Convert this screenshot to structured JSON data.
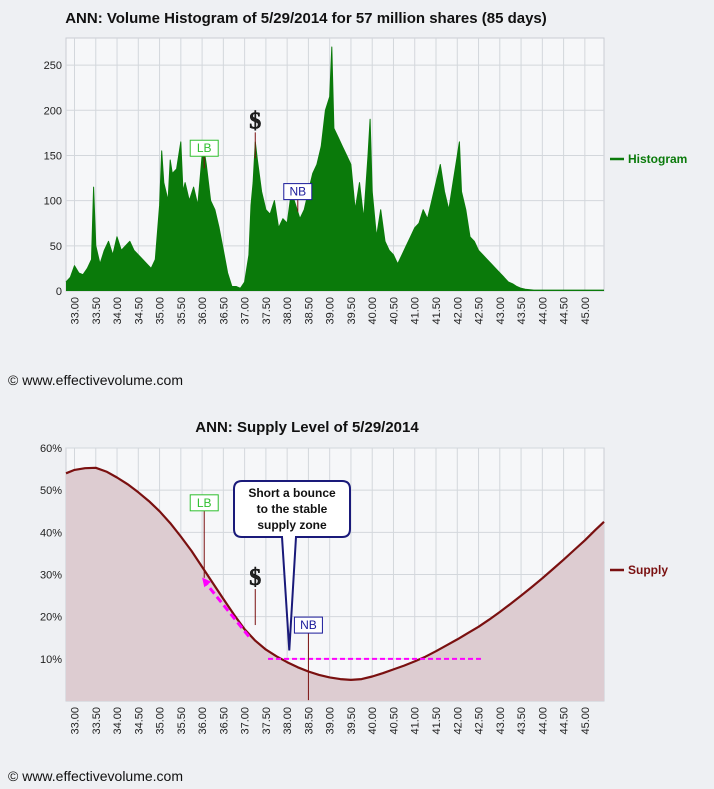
{
  "copyright": "© www.effectivevolume.com",
  "chart_data": [
    {
      "type": "area",
      "title": "ANN: Volume Histogram of 5/29/2014 for 57 million shares (85 days)",
      "legend": "Histogram",
      "legend_position": "right",
      "color": "#0a7a0a",
      "grid": true,
      "x_ticks": [
        "33.00",
        "33.50",
        "34.00",
        "34.50",
        "35.00",
        "35.50",
        "36.00",
        "36.50",
        "37.00",
        "37.50",
        "38.00",
        "38.50",
        "39.00",
        "39.50",
        "40.00",
        "40.50",
        "41.00",
        "41.50",
        "42.00",
        "42.50",
        "43.00",
        "43.50",
        "44.00",
        "44.50",
        "45.00"
      ],
      "y_ticks": [
        "0",
        "50",
        "100",
        "150",
        "200",
        "250"
      ],
      "xlim": [
        32.8,
        45.45
      ],
      "ylim": [
        0,
        280
      ],
      "markers": [
        {
          "label": "LB",
          "x": 36.05,
          "y": 158
        },
        {
          "label": "$",
          "x": 37.25,
          "y": 180
        },
        {
          "label": "NB",
          "x": 38.25,
          "y": 110
        }
      ],
      "x": [
        32.8,
        32.9,
        33.0,
        33.1,
        33.2,
        33.3,
        33.4,
        33.45,
        33.5,
        33.6,
        33.7,
        33.8,
        33.9,
        34.0,
        34.1,
        34.2,
        34.3,
        34.4,
        34.5,
        34.6,
        34.7,
        34.8,
        34.9,
        35.0,
        35.05,
        35.1,
        35.2,
        35.25,
        35.3,
        35.4,
        35.5,
        35.55,
        35.6,
        35.7,
        35.8,
        35.9,
        36.0,
        36.05,
        36.1,
        36.2,
        36.3,
        36.4,
        36.5,
        36.6,
        36.7,
        36.8,
        36.9,
        37.0,
        37.1,
        37.15,
        37.2,
        37.25,
        37.3,
        37.4,
        37.5,
        37.6,
        37.7,
        37.8,
        37.9,
        38.0,
        38.1,
        38.2,
        38.3,
        38.4,
        38.5,
        38.6,
        38.7,
        38.8,
        38.9,
        39.0,
        39.05,
        39.1,
        39.2,
        39.3,
        39.4,
        39.5,
        39.6,
        39.7,
        39.8,
        39.9,
        39.95,
        40.0,
        40.1,
        40.2,
        40.3,
        40.4,
        40.5,
        40.6,
        40.7,
        40.8,
        40.9,
        41.0,
        41.1,
        41.2,
        41.3,
        41.4,
        41.5,
        41.6,
        41.7,
        41.8,
        41.9,
        42.0,
        42.05,
        42.1,
        42.2,
        42.3,
        42.4,
        42.5,
        42.6,
        42.7,
        42.8,
        42.9,
        43.0,
        43.1,
        43.2,
        43.3,
        43.4,
        43.5,
        43.6,
        43.8,
        44.0,
        44.5,
        45.0,
        45.45
      ],
      "values": [
        10,
        15,
        28,
        20,
        18,
        25,
        35,
        115,
        50,
        30,
        45,
        55,
        40,
        60,
        45,
        50,
        55,
        45,
        40,
        35,
        30,
        25,
        35,
        95,
        155,
        120,
        100,
        145,
        130,
        135,
        165,
        110,
        120,
        100,
        115,
        95,
        150,
        155,
        140,
        100,
        90,
        70,
        45,
        20,
        5,
        5,
        3,
        10,
        40,
        95,
        120,
        165,
        145,
        110,
        90,
        85,
        100,
        70,
        80,
        75,
        110,
        95,
        80,
        90,
        110,
        130,
        140,
        160,
        200,
        215,
        270,
        180,
        170,
        160,
        150,
        140,
        90,
        120,
        80,
        150,
        190,
        110,
        60,
        90,
        55,
        45,
        40,
        30,
        40,
        50,
        60,
        70,
        75,
        90,
        80,
        100,
        120,
        140,
        110,
        90,
        120,
        150,
        165,
        110,
        90,
        60,
        55,
        45,
        40,
        35,
        30,
        25,
        20,
        15,
        10,
        8,
        5,
        3,
        2,
        1,
        1,
        1,
        1,
        1
      ]
    },
    {
      "type": "area",
      "title": "ANN: Supply Level of 5/29/2014",
      "legend": "Supply",
      "legend_position": "right",
      "color": "#7a1010",
      "fill": "#ddccd1",
      "grid": true,
      "x_ticks": [
        "33.00",
        "33.50",
        "34.00",
        "34.50",
        "35.00",
        "35.50",
        "36.00",
        "36.50",
        "37.00",
        "37.50",
        "38.00",
        "38.50",
        "39.00",
        "39.50",
        "40.00",
        "40.50",
        "41.00",
        "41.50",
        "42.00",
        "42.50",
        "43.00",
        "43.50",
        "44.00",
        "44.50",
        "45.00"
      ],
      "y_ticks": [
        "10%",
        "20%",
        "30%",
        "40%",
        "50%",
        "60%"
      ],
      "xlim": [
        32.8,
        45.45
      ],
      "ylim": [
        0,
        60
      ],
      "x": [
        32.8,
        33.0,
        33.25,
        33.5,
        33.75,
        34.0,
        34.25,
        34.5,
        34.75,
        35.0,
        35.25,
        35.5,
        35.75,
        36.0,
        36.25,
        36.5,
        36.75,
        37.0,
        37.25,
        37.5,
        37.75,
        38.0,
        38.25,
        38.5,
        38.75,
        39.0,
        39.25,
        39.5,
        39.75,
        40.0,
        40.25,
        40.5,
        40.75,
        41.0,
        41.25,
        41.5,
        41.75,
        42.0,
        42.25,
        42.5,
        42.75,
        43.0,
        43.25,
        43.5,
        43.75,
        44.0,
        44.25,
        44.5,
        44.75,
        45.0,
        45.25,
        45.45
      ],
      "values": [
        54,
        54.8,
        55.2,
        55.3,
        54.4,
        53,
        51.4,
        49.5,
        47.4,
        45,
        42.2,
        39,
        35.6,
        31.8,
        28,
        24.2,
        20.5,
        17,
        14.3,
        12.2,
        10.6,
        9.2,
        8,
        7,
        6.2,
        5.6,
        5.2,
        5,
        5.2,
        5.8,
        6.6,
        7.5,
        8.4,
        9.4,
        10.5,
        11.8,
        13.2,
        14.6,
        16.1,
        17.6,
        19.3,
        21.1,
        23,
        25,
        27,
        29.1,
        31.3,
        33.5,
        35.8,
        38.1,
        40.6,
        42.5
      ],
      "threshold": {
        "y": 10,
        "x_start": 37.55,
        "x_end": 42.6
      },
      "arrow": {
        "from": [
          37.1,
          15.3
        ],
        "to": [
          36.0,
          29.3
        ]
      },
      "markers": [
        {
          "label": "LB",
          "x": 36.05,
          "y": 47
        },
        {
          "label": "$",
          "x": 37.25,
          "y": 27.5
        },
        {
          "label": "NB",
          "x": 38.5,
          "y": 18
        }
      ],
      "callout": {
        "lines": [
          "Short a bounce",
          "to the stable",
          "supply zone"
        ],
        "points_to": [
          38.05,
          12
        ]
      }
    }
  ]
}
